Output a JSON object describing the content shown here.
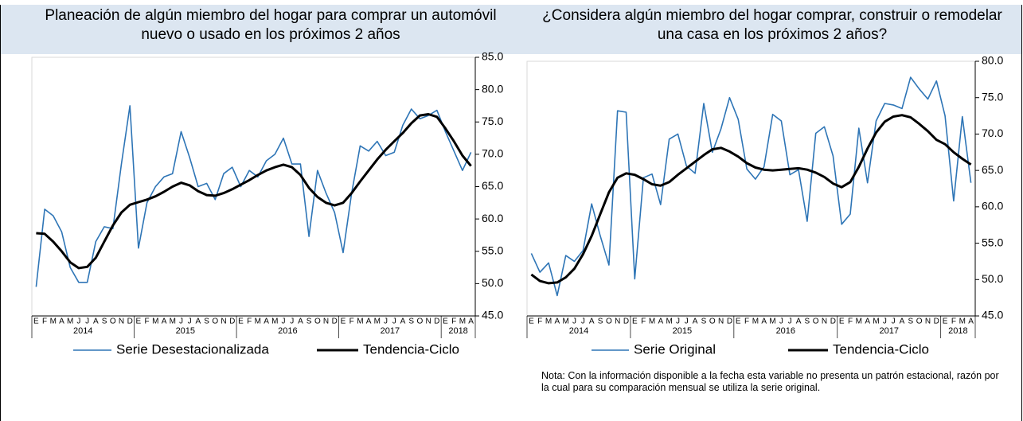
{
  "chart_data": [
    {
      "type": "line",
      "title": "Planeación de algún miembro del hogar para comprar un automóvil nuevo o usado en los próximos 2 años",
      "categories": [
        "E",
        "F",
        "M",
        "A",
        "M",
        "J",
        "J",
        "A",
        "S",
        "O",
        "N",
        "D",
        "E",
        "F",
        "M",
        "A",
        "M",
        "J",
        "J",
        "A",
        "S",
        "O",
        "N",
        "D",
        "E",
        "F",
        "M",
        "A",
        "M",
        "J",
        "J",
        "A",
        "S",
        "O",
        "N",
        "D",
        "E",
        "F",
        "M",
        "A",
        "M",
        "J",
        "J",
        "A",
        "S",
        "O",
        "N",
        "D",
        "E",
        "F",
        "M",
        "A"
      ],
      "years": [
        "2014",
        "2015",
        "2016",
        "2017",
        "2018"
      ],
      "series": [
        {
          "name": "Serie Desestacionalizada",
          "color": "#2e75b6",
          "values": [
            49.5,
            61.5,
            60.5,
            58,
            52.5,
            50.2,
            50.2,
            56.5,
            58.8,
            58.5,
            68.5,
            77.5,
            55.5,
            62.5,
            65,
            66.5,
            67,
            73.5,
            69.5,
            65,
            65.5,
            63,
            67,
            68,
            65,
            67.5,
            66.5,
            69,
            70,
            72.5,
            68.5,
            68.5,
            57.3,
            67.5,
            64,
            61,
            54.8,
            64,
            71.3,
            70.5,
            72,
            69.8,
            70.3,
            74.5,
            77,
            75.5,
            76,
            76.8,
            73.5,
            70.5,
            67.5,
            70.3
          ]
        },
        {
          "name": "Tendencia-Ciclo",
          "color": "#000000",
          "values": [
            57.8,
            57.7,
            56.5,
            55,
            53.3,
            52.4,
            52.6,
            54,
            56.5,
            59,
            61,
            62.2,
            62.6,
            63,
            63.5,
            64.2,
            65,
            65.6,
            65.2,
            64.3,
            63.7,
            63.6,
            64,
            64.6,
            65.3,
            66,
            66.8,
            67.5,
            68,
            68.4,
            68,
            66.8,
            64.8,
            63.4,
            62.5,
            62.1,
            62.5,
            64,
            65.8,
            67.5,
            69.2,
            70.7,
            72,
            73.3,
            74.8,
            76,
            76.2,
            75.8,
            74,
            72,
            69.8,
            68.2
          ]
        }
      ],
      "ylim": [
        45,
        85
      ],
      "yticks": [
        {
          "value": 45,
          "label": "45.0"
        },
        {
          "value": 50,
          "label": "50.0"
        },
        {
          "value": 55,
          "label": "55.0"
        },
        {
          "value": 60,
          "label": "60.0"
        },
        {
          "value": 65,
          "label": "65.0"
        },
        {
          "value": 70,
          "label": "70.0"
        },
        {
          "value": 75,
          "label": "75.0"
        },
        {
          "value": 80,
          "label": "80.0"
        },
        {
          "value": 85,
          "label": "85.0"
        }
      ]
    },
    {
      "type": "line",
      "title": "¿Considera algún miembro del hogar comprar, construir o remodelar una casa en los próximos 2 años?",
      "categories": [
        "E",
        "F",
        "M",
        "A",
        "M",
        "J",
        "J",
        "A",
        "S",
        "O",
        "N",
        "D",
        "E",
        "F",
        "M",
        "A",
        "M",
        "J",
        "J",
        "A",
        "S",
        "O",
        "N",
        "D",
        "E",
        "F",
        "M",
        "A",
        "M",
        "J",
        "J",
        "A",
        "S",
        "O",
        "N",
        "D",
        "E",
        "F",
        "M",
        "A",
        "M",
        "J",
        "J",
        "A",
        "S",
        "O",
        "N",
        "D",
        "E",
        "F",
        "M",
        "A"
      ],
      "years": [
        "2014",
        "2015",
        "2016",
        "2017",
        "2018"
      ],
      "series": [
        {
          "name": "Serie Original",
          "color": "#2e75b6",
          "values": [
            53.6,
            51,
            52.3,
            47.8,
            53.3,
            52.5,
            54,
            60.4,
            56,
            52,
            73.2,
            73,
            50.1,
            64,
            64.5,
            60.3,
            69.3,
            70,
            65.6,
            64.6,
            74.2,
            67.5,
            70.7,
            75,
            72,
            65.2,
            63.8,
            65.5,
            72.7,
            71.8,
            64.4,
            65.1,
            58,
            70.1,
            71,
            67,
            57.6,
            59,
            70.8,
            63.3,
            71.8,
            74.2,
            74,
            73.5,
            77.8,
            76.2,
            74.8,
            77.3,
            72.5,
            60.8,
            72.4,
            63.3
          ]
        },
        {
          "name": "Tendencia-Ciclo",
          "color": "#000000",
          "values": [
            50.7,
            49.8,
            49.5,
            49.6,
            50.3,
            51.5,
            53.5,
            56,
            59,
            62,
            64,
            64.6,
            64.4,
            63.8,
            63.1,
            62.9,
            63.4,
            64.4,
            65.3,
            66.2,
            67.1,
            67.9,
            68.1,
            67.6,
            66.9,
            66,
            65.4,
            65.1,
            65,
            65.1,
            65.2,
            65.3,
            65.1,
            64.7,
            64.1,
            63.2,
            62.7,
            63.4,
            65.5,
            68,
            70.2,
            71.7,
            72.4,
            72.6,
            72.3,
            71.4,
            70.4,
            69.2,
            68.6,
            67.5,
            66.6,
            65.8
          ]
        }
      ],
      "ylim": [
        45,
        80
      ],
      "yticks": [
        {
          "value": 45,
          "label": "45.0"
        },
        {
          "value": 50,
          "label": "50.0"
        },
        {
          "value": 55,
          "label": "55.0"
        },
        {
          "value": 60,
          "label": "60.0"
        },
        {
          "value": 65,
          "label": "65.0"
        },
        {
          "value": 70,
          "label": "70.0"
        },
        {
          "value": 75,
          "label": "75.0"
        },
        {
          "value": 80,
          "label": "80.0"
        }
      ],
      "note": "Nota:  Con la información disponible a la fecha esta variable no presenta un patrón estacional, razón por la cual para su comparación mensual se utiliza la serie original."
    }
  ]
}
